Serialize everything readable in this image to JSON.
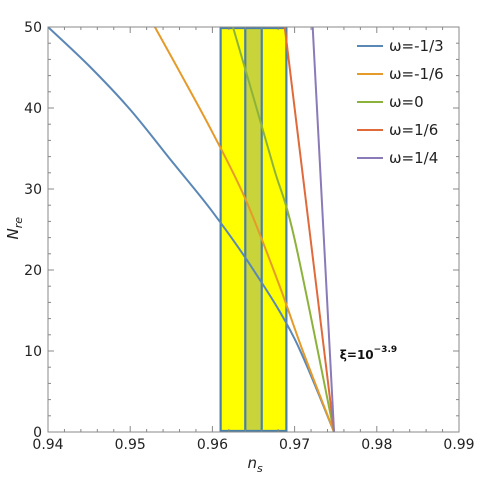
{
  "chart_data": {
    "type": "line",
    "title": "",
    "xlabel": "n",
    "xlabel_sub": "s",
    "ylabel": "N",
    "ylabel_sub": "re",
    "xlim": [
      0.94,
      0.99
    ],
    "ylim": [
      0,
      50
    ],
    "x_ticks": [
      "0.94",
      "0.95",
      "0.96",
      "0.97",
      "0.98",
      "0.99"
    ],
    "y_ticks": [
      "0",
      "10",
      "20",
      "30",
      "40",
      "50"
    ],
    "grid": false,
    "legend_position": "top-right",
    "bands": [
      {
        "x_range": [
          0.961,
          0.969
        ],
        "fill": "#ffff00"
      },
      {
        "x_range": [
          0.964,
          0.966
        ],
        "fill": "#c8d43a"
      }
    ],
    "band_lines_x": [
      0.961,
      0.964,
      0.966,
      0.969
    ],
    "band_line_color": "#4a7fa8",
    "series": [
      {
        "name": "ω=-1/3",
        "color": "#5b87b6",
        "points": [
          [
            0.94,
            50
          ],
          [
            0.945,
            45.2
          ],
          [
            0.95,
            39.8
          ],
          [
            0.955,
            33.5
          ],
          [
            0.96,
            27.2
          ],
          [
            0.965,
            20.0
          ],
          [
            0.97,
            11.5
          ],
          [
            0.9748,
            0
          ]
        ]
      },
      {
        "name": "ω=-1/6",
        "color": "#e59a2a",
        "points": [
          [
            0.953,
            50
          ],
          [
            0.956,
            44.5
          ],
          [
            0.96,
            37.0
          ],
          [
            0.964,
            28.8
          ],
          [
            0.968,
            18.5
          ],
          [
            0.971,
            10.0
          ],
          [
            0.9748,
            0
          ]
        ]
      },
      {
        "name": "ω=0",
        "color": "#8db23c",
        "points": [
          [
            0.9625,
            50
          ],
          [
            0.965,
            41.3
          ],
          [
            0.9675,
            32.5
          ],
          [
            0.97,
            23.8
          ],
          [
            0.9748,
            0
          ]
        ]
      },
      {
        "name": "ω=1/6",
        "color": "#e06a3a",
        "points": [
          [
            0.9688,
            50
          ],
          [
            0.9748,
            0
          ]
        ]
      },
      {
        "name": "ω=1/4",
        "color": "#8b7ab8",
        "points": [
          [
            0.9722,
            50
          ],
          [
            0.9748,
            0
          ]
        ]
      }
    ],
    "annotation": {
      "base": "ξ=10",
      "exponent": "−3.9",
      "x": 0.9755,
      "y": 9.5
    }
  }
}
